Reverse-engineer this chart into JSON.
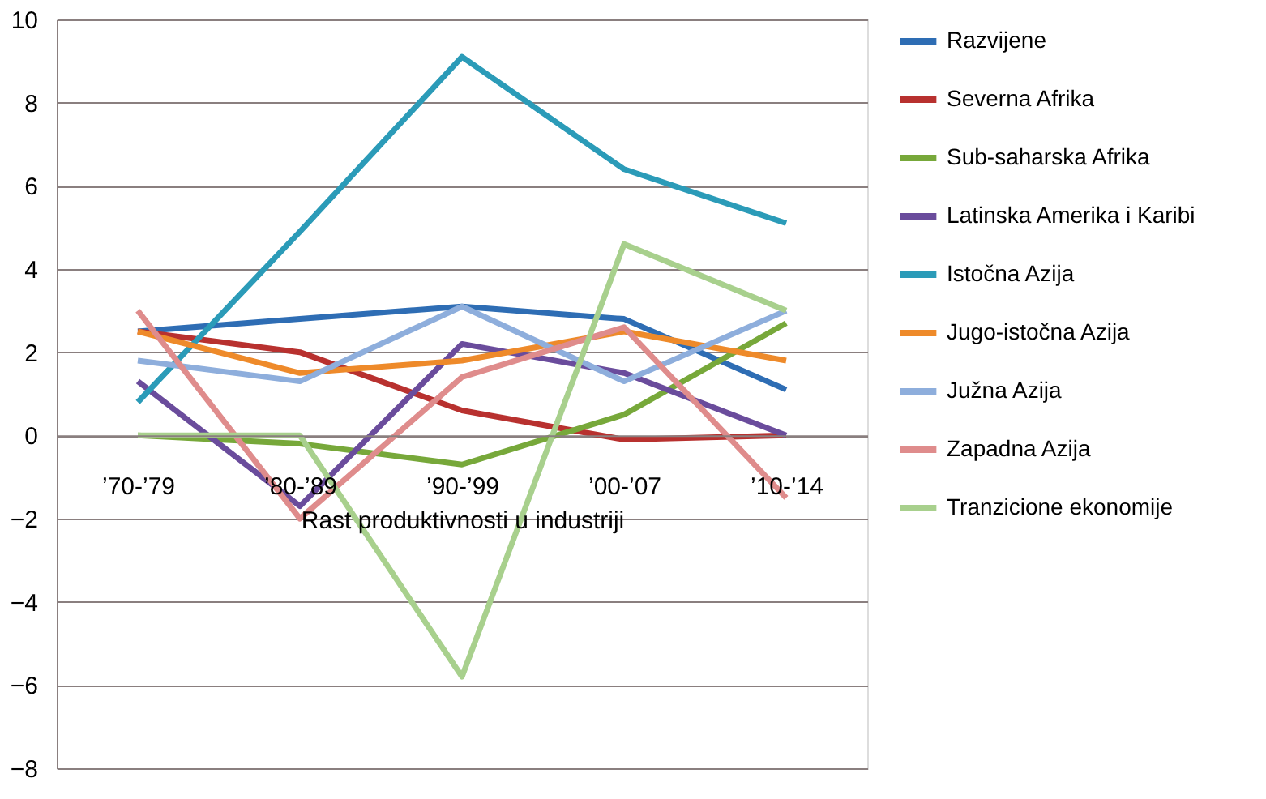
{
  "chart_data": {
    "type": "line",
    "xlabel": "Rast produktivnosti u industriji",
    "categories": [
      "’70-’79",
      "’80-’89",
      "’90-’99",
      "’00-’07",
      "’10-’14"
    ],
    "series": [
      {
        "name": "Razvijene",
        "color": "#2e6db4",
        "values": [
          2.5,
          2.8,
          3.1,
          2.8,
          1.1
        ]
      },
      {
        "name": "Severna Afrika",
        "color": "#b8312f",
        "values": [
          2.5,
          2.0,
          0.6,
          -0.1,
          0.0
        ]
      },
      {
        "name": "Sub-saharska Afrika",
        "color": "#77a83a",
        "values": [
          0.0,
          -0.2,
          -0.7,
          0.5,
          2.7
        ]
      },
      {
        "name": "Latinska Amerika i Karibi",
        "color": "#6a4c9c",
        "values": [
          1.3,
          -1.7,
          2.2,
          1.5,
          0.0
        ]
      },
      {
        "name": "Istočna Azija",
        "color": "#2b9bb8",
        "values": [
          0.8,
          4.9,
          9.1,
          6.4,
          5.1
        ]
      },
      {
        "name": "Jugo-istočna Azija",
        "color": "#ee8a2a",
        "values": [
          2.5,
          1.5,
          1.8,
          2.5,
          1.8
        ]
      },
      {
        "name": "Južna Azija",
        "color": "#8eaedc",
        "values": [
          1.8,
          1.3,
          3.1,
          1.3,
          3.0
        ]
      },
      {
        "name": "Zapadna Azija",
        "color": "#df8c8c",
        "values": [
          3.0,
          -2.0,
          1.4,
          2.6,
          -1.5
        ]
      },
      {
        "name": "Tranzicione ekonomije",
        "color": "#a8d08d",
        "values": [
          0.0,
          0.0,
          -5.8,
          4.6,
          3.0
        ]
      }
    ],
    "ylim": [
      -8,
      10
    ],
    "yticks": [
      -8,
      -6,
      -4,
      -2,
      0,
      2,
      4,
      6,
      8,
      10
    ],
    "grid": "y",
    "legend": "right",
    "marker": "none",
    "line_style": "solid"
  }
}
